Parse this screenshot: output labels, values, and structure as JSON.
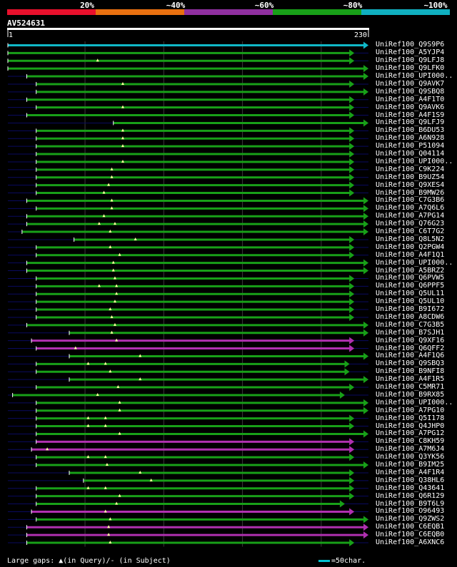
{
  "chart_data": {
    "type": "alignment-overview",
    "title": "AV524631",
    "query_length": 230,
    "ruler": {
      "start_label": "1",
      "end_label": "230"
    },
    "identity_scale": [
      {
        "label": "20%",
        "color": "#e8102c"
      },
      {
        "label": "~40%",
        "color": "#e87010"
      },
      {
        "label": "~60%",
        "color": "#9030a0"
      },
      {
        "label": "~80%",
        "color": "#18a018"
      },
      {
        "label": "~100%",
        "color": "#10b0c0"
      }
    ],
    "colors": {
      "green": "#18a018",
      "magenta": "#b030b0",
      "cyan": "#10b8c8",
      "navy": "#0a0a60",
      "gap": "#ffffa0"
    },
    "hits": [
      {
        "name": "UniRef100_Q9S9P6",
        "color": "cyan",
        "start": 1,
        "end": 230,
        "gaps": []
      },
      {
        "name": "UniRef100_A5YJP4",
        "color": "green",
        "start": 1,
        "end": 221,
        "gaps": []
      },
      {
        "name": "UniRef100_Q9LFJ8",
        "color": "green",
        "start": 1,
        "end": 221,
        "gaps": [
          58
        ]
      },
      {
        "name": "UniRef100_Q9LFK0",
        "color": "green",
        "start": 1,
        "end": 230,
        "gaps": []
      },
      {
        "name": "UniRef100_UPI000..",
        "color": "green",
        "start": 13,
        "end": 230,
        "gaps": []
      },
      {
        "name": "UniRef100_Q9AVK7",
        "color": "green",
        "start": 19,
        "end": 221,
        "gaps": [
          74
        ]
      },
      {
        "name": "UniRef100_Q9SBQ8",
        "color": "green",
        "start": 19,
        "end": 230,
        "gaps": []
      },
      {
        "name": "UniRef100_A4F1T0",
        "color": "green",
        "start": 13,
        "end": 221,
        "gaps": []
      },
      {
        "name": "UniRef100_Q9AVK6",
        "color": "green",
        "start": 19,
        "end": 221,
        "gaps": [
          74
        ]
      },
      {
        "name": "UniRef100_A4F1S9",
        "color": "green",
        "start": 13,
        "end": 221,
        "gaps": []
      },
      {
        "name": "UniRef100_Q9LFJ9",
        "color": "green",
        "start": 68,
        "end": 230,
        "gaps": []
      },
      {
        "name": "UniRef100_B6DU53",
        "color": "green",
        "start": 19,
        "end": 221,
        "gaps": [
          74
        ]
      },
      {
        "name": "UniRef100_A6N928",
        "color": "green",
        "start": 19,
        "end": 221,
        "gaps": [
          74
        ]
      },
      {
        "name": "UniRef100_P51094",
        "color": "green",
        "start": 19,
        "end": 221,
        "gaps": [
          74
        ]
      },
      {
        "name": "UniRef100_Q04114",
        "color": "green",
        "start": 19,
        "end": 221,
        "gaps": []
      },
      {
        "name": "UniRef100_UPI000..",
        "color": "green",
        "start": 19,
        "end": 221,
        "gaps": [
          74
        ]
      },
      {
        "name": "UniRef100_C9K224",
        "color": "green",
        "start": 19,
        "end": 221,
        "gaps": [
          67
        ]
      },
      {
        "name": "UniRef100_B9UZ54",
        "color": "green",
        "start": 19,
        "end": 221,
        "gaps": [
          67
        ]
      },
      {
        "name": "UniRef100_Q9XES4",
        "color": "green",
        "start": 19,
        "end": 221,
        "gaps": [
          65
        ]
      },
      {
        "name": "UniRef100_B9MW26",
        "color": "green",
        "start": 19,
        "end": 221,
        "gaps": [
          62
        ]
      },
      {
        "name": "UniRef100_C7G3B6",
        "color": "green",
        "start": 13,
        "end": 230,
        "gaps": [
          67
        ]
      },
      {
        "name": "UniRef100_A7Q6L6",
        "color": "green",
        "start": 19,
        "end": 230,
        "gaps": [
          67
        ]
      },
      {
        "name": "UniRef100_A7PG14",
        "color": "green",
        "start": 13,
        "end": 230,
        "gaps": [
          62
        ]
      },
      {
        "name": "UniRef100_Q76G23",
        "color": "green",
        "start": 13,
        "end": 230,
        "gaps": [
          59,
          69
        ]
      },
      {
        "name": "UniRef100_C6T7G2",
        "color": "green",
        "start": 10,
        "end": 230,
        "gaps": [
          66
        ]
      },
      {
        "name": "UniRef100_Q8L5N2",
        "color": "green",
        "start": 43,
        "end": 221,
        "gaps": [
          82
        ]
      },
      {
        "name": "UniRef100_Q2PGW4",
        "color": "green",
        "start": 19,
        "end": 221,
        "gaps": [
          66
        ]
      },
      {
        "name": "UniRef100_A4F1Q1",
        "color": "green",
        "start": 19,
        "end": 221,
        "gaps": [
          72
        ]
      },
      {
        "name": "UniRef100_UPI000..",
        "color": "green",
        "start": 13,
        "end": 230,
        "gaps": [
          68
        ]
      },
      {
        "name": "UniRef100_A5BRZ2",
        "color": "green",
        "start": 13,
        "end": 230,
        "gaps": [
          68
        ]
      },
      {
        "name": "UniRef100_Q6PVW5",
        "color": "green",
        "start": 19,
        "end": 221,
        "gaps": [
          69
        ]
      },
      {
        "name": "UniRef100_Q6PPF5",
        "color": "green",
        "start": 19,
        "end": 221,
        "gaps": [
          59,
          70
        ]
      },
      {
        "name": "UniRef100_Q5UL11",
        "color": "green",
        "start": 19,
        "end": 221,
        "gaps": [
          70
        ]
      },
      {
        "name": "UniRef100_Q5UL10",
        "color": "green",
        "start": 19,
        "end": 221,
        "gaps": [
          69
        ]
      },
      {
        "name": "UniRef100_B9I672",
        "color": "green",
        "start": 19,
        "end": 221,
        "gaps": [
          66
        ]
      },
      {
        "name": "UniRef100_A8CDW6",
        "color": "green",
        "start": 19,
        "end": 221,
        "gaps": [
          67
        ]
      },
      {
        "name": "UniRef100_C7G3B5",
        "color": "green",
        "start": 13,
        "end": 230,
        "gaps": [
          69
        ]
      },
      {
        "name": "UniRef100_B7SJH1",
        "color": "green",
        "start": 40,
        "end": 230,
        "gaps": [
          67
        ]
      },
      {
        "name": "UniRef100_Q9XF16",
        "color": "magenta",
        "start": 16,
        "end": 221,
        "gaps": [
          70
        ]
      },
      {
        "name": "UniRef100_Q6QFF2",
        "color": "magenta",
        "start": 19,
        "end": 221,
        "gaps": [
          44
        ]
      },
      {
        "name": "UniRef100_A4F1Q6",
        "color": "green",
        "start": 40,
        "end": 230,
        "gaps": [
          85
        ]
      },
      {
        "name": "UniRef100_Q9SBQ3",
        "color": "green",
        "start": 19,
        "end": 218,
        "gaps": [
          52,
          63
        ]
      },
      {
        "name": "UniRef100_B9NFI8",
        "color": "green",
        "start": 19,
        "end": 218,
        "gaps": [
          66
        ]
      },
      {
        "name": "UniRef100_A4F1R5",
        "color": "green",
        "start": 40,
        "end": 230,
        "gaps": [
          85
        ]
      },
      {
        "name": "UniRef100_C5MR71",
        "color": "green",
        "start": 19,
        "end": 221,
        "gaps": [
          71
        ]
      },
      {
        "name": "UniRef100_B9RX85",
        "color": "green",
        "start": 4,
        "end": 215,
        "gaps": [
          58
        ]
      },
      {
        "name": "UniRef100_UPI000..",
        "color": "green",
        "start": 19,
        "end": 230,
        "gaps": [
          72
        ]
      },
      {
        "name": "UniRef100_A7PG10",
        "color": "green",
        "start": 19,
        "end": 230,
        "gaps": [
          72
        ]
      },
      {
        "name": "UniRef100_Q5I178",
        "color": "green",
        "start": 19,
        "end": 221,
        "gaps": [
          52,
          63
        ]
      },
      {
        "name": "UniRef100_Q4JHP0",
        "color": "green",
        "start": 19,
        "end": 221,
        "gaps": [
          52,
          63
        ]
      },
      {
        "name": "UniRef100_A7PG12",
        "color": "green",
        "start": 19,
        "end": 230,
        "gaps": [
          72
        ]
      },
      {
        "name": "UniRef100_C8KH59",
        "color": "magenta",
        "start": 19,
        "end": 221,
        "gaps": []
      },
      {
        "name": "UniRef100_A7M6J4",
        "color": "magenta",
        "start": 16,
        "end": 221,
        "gaps": [
          26
        ]
      },
      {
        "name": "UniRef100_Q3YK56",
        "color": "green",
        "start": 19,
        "end": 221,
        "gaps": [
          52,
          63
        ]
      },
      {
        "name": "UniRef100_B9IM25",
        "color": "green",
        "start": 19,
        "end": 230,
        "gaps": [
          64
        ]
      },
      {
        "name": "UniRef100_A4F1R4",
        "color": "green",
        "start": 40,
        "end": 221,
        "gaps": [
          85
        ]
      },
      {
        "name": "UniRef100_Q38HL6",
        "color": "green",
        "start": 49,
        "end": 221,
        "gaps": [
          92
        ]
      },
      {
        "name": "UniRef100_Q43641",
        "color": "green",
        "start": 19,
        "end": 221,
        "gaps": [
          52,
          63
        ]
      },
      {
        "name": "UniRef100_Q6R129",
        "color": "green",
        "start": 19,
        "end": 221,
        "gaps": [
          72
        ]
      },
      {
        "name": "UniRef100_B9T6L9",
        "color": "green",
        "start": 19,
        "end": 215,
        "gaps": [
          70
        ]
      },
      {
        "name": "UniRef100_O96493",
        "color": "magenta",
        "start": 16,
        "end": 221,
        "gaps": [
          63
        ]
      },
      {
        "name": "UniRef100_Q9ZWS2",
        "color": "green",
        "start": 19,
        "end": 230,
        "gaps": [
          66
        ]
      },
      {
        "name": "UniRef100_C6EQB1",
        "color": "magenta",
        "start": 13,
        "end": 230,
        "gaps": [
          65
        ]
      },
      {
        "name": "UniRef100_C6EQB0",
        "color": "magenta",
        "start": 13,
        "end": 230,
        "gaps": [
          65
        ]
      },
      {
        "name": "UniRef100_A6XNC6",
        "color": "green",
        "start": 13,
        "end": 221,
        "gaps": [
          66
        ]
      }
    ],
    "footer": "Large gaps: ▲(in Query)/- (in Subject)",
    "legend": "=50char."
  }
}
